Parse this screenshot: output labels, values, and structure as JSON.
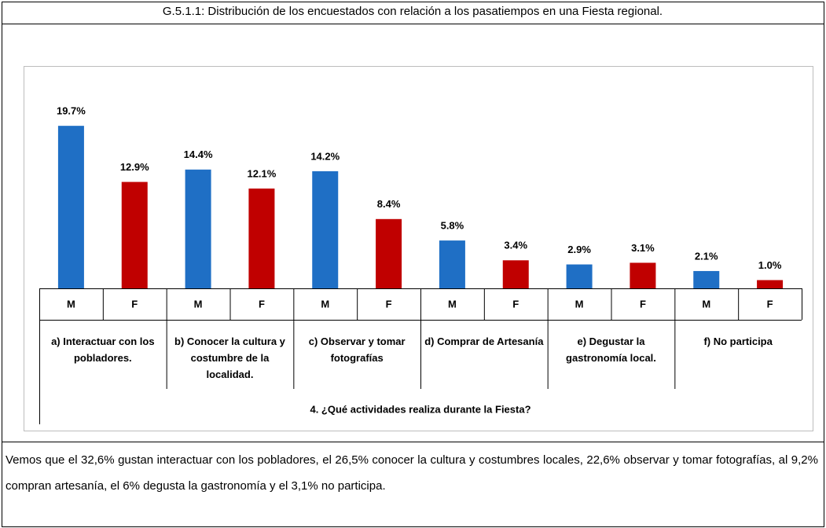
{
  "caption": "G.5.1.1: Distribución de los encuestados con relación a los pasatiempos en una Fiesta regional.",
  "chart_data": {
    "type": "bar",
    "categories": [
      "a) Interactuar con los pobladores.",
      "b) Conocer la cultura y costumbre de la localidad.",
      "c) Observar y tomar fotografías",
      "d) Comprar de Artesanía",
      "e) Degustar la gastronomía local.",
      "f) No participa"
    ],
    "xlabel": "4.   ¿Qué actividades realiza durante la Fiesta?",
    "series": [
      {
        "name": "M",
        "color": "#1f6fc5",
        "values": [
          19.7,
          14.4,
          14.2,
          5.8,
          2.9,
          2.1
        ],
        "value_labels": [
          "19.7%",
          "14.4%",
          "14.2%",
          "5.8%",
          "2.9%",
          "2.1%"
        ]
      },
      {
        "name": "F",
        "color": "#c00000",
        "values": [
          12.9,
          12.1,
          8.4,
          3.4,
          3.1,
          1.0
        ],
        "value_labels": [
          "12.9%",
          "12.1%",
          "8.4%",
          "3.4%",
          "3.1%",
          "1.0%"
        ]
      }
    ],
    "ylim": [
      0,
      20
    ]
  },
  "paragraph": "Vemos que el 32,6% gustan interactuar con los pobladores, el 26,5% conocer la cultura y costumbres locales, 22,6% observar y tomar fotografías, al 9,2% compran artesanía, el 6% degusta la gastronomía y el 3,1% no participa."
}
